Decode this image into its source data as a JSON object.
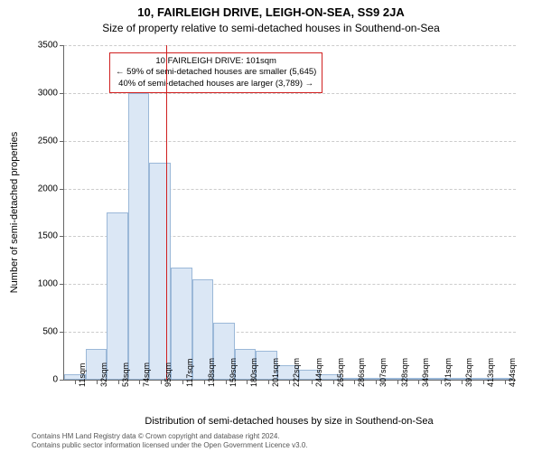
{
  "title_main": "10, FAIRLEIGH DRIVE, LEIGH-ON-SEA, SS9 2JA",
  "title_sub": "Size of property relative to semi-detached houses in Southend-on-Sea",
  "ylabel": "Number of semi-detached properties",
  "xlabel": "Distribution of semi-detached houses by size in Southend-on-Sea",
  "footer_line1": "Contains HM Land Registry data © Crown copyright and database right 2024.",
  "footer_line2": "Contains public sector information licensed under the Open Government Licence v3.0.",
  "chart": {
    "type": "histogram",
    "ylim_max": 3500,
    "ytick_step": 500,
    "yticks": [
      0,
      500,
      1000,
      1500,
      2000,
      2500,
      3000,
      3500
    ],
    "bar_fill": "#dbe7f5",
    "bar_border": "#9bb8d8",
    "grid_color": "#cccccc",
    "axis_color": "#666666",
    "background_color": "#ffffff",
    "ref_line_color": "#d02020",
    "ref_value": 101,
    "x_min": 0,
    "x_max": 445,
    "bar_width_sqm": 21,
    "bars": [
      {
        "x_start": 0,
        "value": 60
      },
      {
        "x_start": 21,
        "value": 320
      },
      {
        "x_start": 42,
        "value": 1750
      },
      {
        "x_start": 63,
        "value": 3000
      },
      {
        "x_start": 84,
        "value": 2270
      },
      {
        "x_start": 105,
        "value": 1170
      },
      {
        "x_start": 126,
        "value": 1050
      },
      {
        "x_start": 147,
        "value": 600
      },
      {
        "x_start": 168,
        "value": 320
      },
      {
        "x_start": 189,
        "value": 300
      },
      {
        "x_start": 210,
        "value": 150
      },
      {
        "x_start": 231,
        "value": 100
      },
      {
        "x_start": 252,
        "value": 60
      },
      {
        "x_start": 273,
        "value": 20
      },
      {
        "x_start": 294,
        "value": 10
      },
      {
        "x_start": 315,
        "value": 8
      },
      {
        "x_start": 336,
        "value": 6
      },
      {
        "x_start": 357,
        "value": 5
      },
      {
        "x_start": 378,
        "value": 4
      },
      {
        "x_start": 399,
        "value": 3
      },
      {
        "x_start": 420,
        "value": 2
      }
    ],
    "xticks": [
      {
        "pos": 11,
        "label": "11sqm"
      },
      {
        "pos": 32,
        "label": "32sqm"
      },
      {
        "pos": 53,
        "label": "53sqm"
      },
      {
        "pos": 74,
        "label": "74sqm"
      },
      {
        "pos": 95,
        "label": "95sqm"
      },
      {
        "pos": 117,
        "label": "117sqm"
      },
      {
        "pos": 138,
        "label": "138sqm"
      },
      {
        "pos": 159,
        "label": "159sqm"
      },
      {
        "pos": 180,
        "label": "180sqm"
      },
      {
        "pos": 201,
        "label": "201sqm"
      },
      {
        "pos": 222,
        "label": "222sqm"
      },
      {
        "pos": 244,
        "label": "244sqm"
      },
      {
        "pos": 265,
        "label": "265sqm"
      },
      {
        "pos": 286,
        "label": "286sqm"
      },
      {
        "pos": 307,
        "label": "307sqm"
      },
      {
        "pos": 328,
        "label": "328sqm"
      },
      {
        "pos": 349,
        "label": "349sqm"
      },
      {
        "pos": 371,
        "label": "371sqm"
      },
      {
        "pos": 392,
        "label": "392sqm"
      },
      {
        "pos": 413,
        "label": "413sqm"
      },
      {
        "pos": 434,
        "label": "434sqm"
      }
    ]
  },
  "annotation": {
    "line1": "10 FAIRLEIGH DRIVE: 101sqm",
    "line2": "← 59% of semi-detached houses are smaller (5,645)",
    "line3": "40% of semi-detached houses are larger (3,789) →"
  }
}
